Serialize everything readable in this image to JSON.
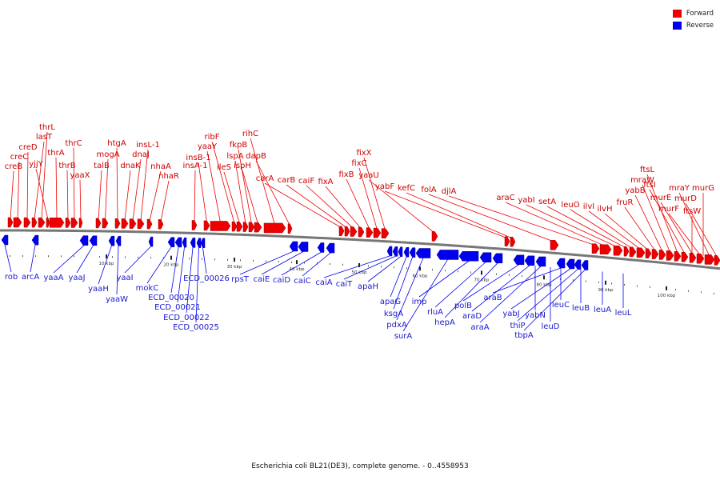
{
  "caption": "Escherichia coli BL21(DE3), complete genome. - 0..4558953",
  "legend": [
    {
      "label": "Forward",
      "color": "#ee0000"
    },
    {
      "label": "Reverse",
      "color": "#0000ee"
    }
  ],
  "colors": {
    "forward": "#ee0000",
    "reverse": "#0000ee",
    "backbone": "#777777"
  },
  "ruler": {
    "unit": "kbp",
    "labels": [
      "10 kbp",
      "20 kbp",
      "30 kbp",
      "40 kbp",
      "50 kbp",
      "60 kbp",
      "70 kbp",
      "80 kbp",
      "90 kbp",
      "100 kbp"
    ]
  },
  "forward_genes": [
    "creB",
    "creC",
    "creD",
    "lasT",
    "thrL",
    "yjjY",
    "thrA",
    "thrB",
    "thrC",
    "yaaX",
    "talB",
    "mogA",
    "htgA",
    "dnaK",
    "dnaJ",
    "insL-1",
    "nhaA",
    "nhaR",
    "insA-1",
    "insB-1",
    "yaaY",
    "ribF",
    "ileS",
    "lspA",
    "fkpB",
    "ispH",
    "rihC",
    "dapB",
    "carA",
    "carB",
    "caiF",
    "fixA",
    "fixB",
    "fixC",
    "fixX",
    "yaaU",
    "yabF",
    "kefC",
    "folA",
    "djlA",
    "araC",
    "yabI",
    "setA",
    "leuO",
    "ilvI",
    "ilvH",
    "fruR",
    "yabB",
    "mraW",
    "ftsL",
    "ftsI",
    "murE",
    "murF",
    "mraY",
    "murD",
    "ftsW",
    "murG"
  ],
  "reverse_genes": [
    "rob",
    "arcA",
    "yaaA",
    "yaaJ",
    "yaaH",
    "yaaW",
    "yaaI",
    "mokC",
    "ECD_00020",
    "ECD_00021",
    "ECD_00022",
    "ECD_00025",
    "ECD_00026",
    "rpsT",
    "caiE",
    "caiD",
    "caiC",
    "caiA",
    "caiT",
    "apaH",
    "apaG",
    "ksgA",
    "pdxA",
    "surA",
    "imp",
    "rluA",
    "hepA",
    "polB",
    "araD",
    "araA",
    "araB",
    "yabJ",
    "thiP",
    "tbpA",
    "yabN",
    "leuD",
    "leuC",
    "leuB",
    "leuA",
    "leuL"
  ]
}
